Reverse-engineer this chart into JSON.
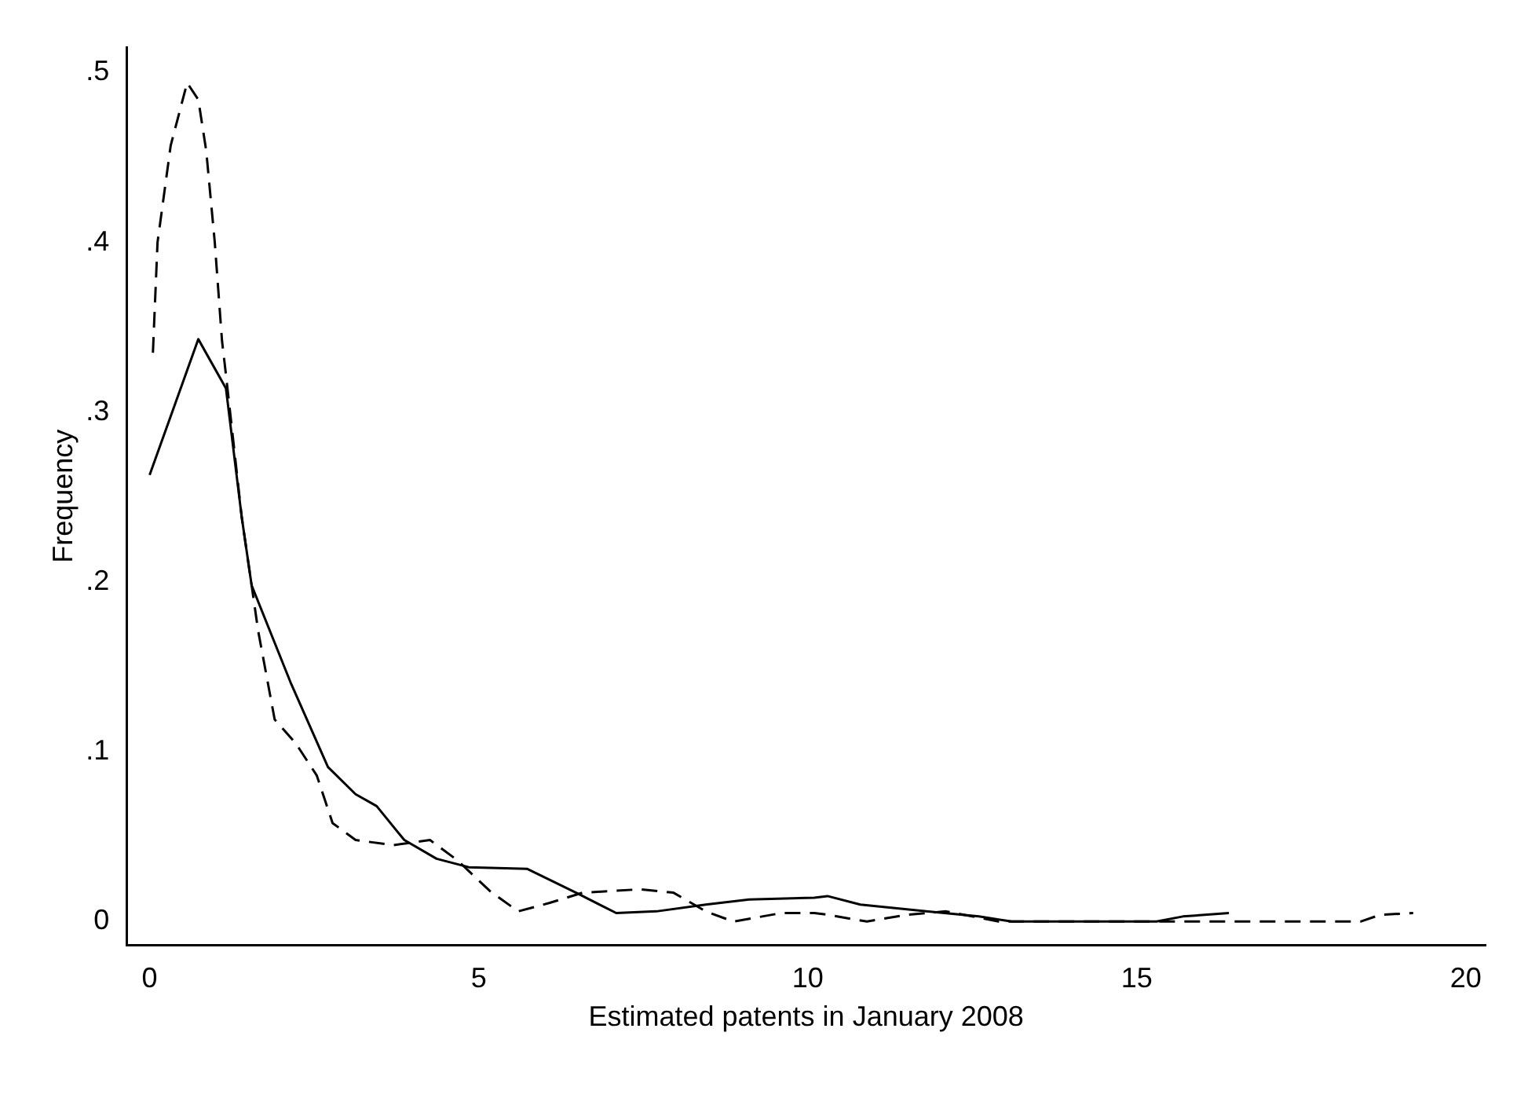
{
  "chart_data": {
    "type": "line",
    "xlabel": "Estimated patents in January 2008",
    "ylabel": "Frequency",
    "xlim": [
      -0.35,
      20.3
    ],
    "ylim": [
      -0.014,
      0.515
    ],
    "xticks": [
      0,
      5,
      10,
      15,
      20
    ],
    "yticks": [
      0,
      {
        "value": 0.1,
        "label": ".1"
      },
      {
        "value": 0.2,
        "label": ".2"
      },
      {
        "value": 0.3,
        "label": ".3"
      },
      {
        "value": 0.4,
        "label": ".4"
      },
      {
        "value": 0.5,
        "label": ".5"
      }
    ],
    "grid": false,
    "legend": false,
    "marker": "none",
    "series": [
      {
        "color": "#000000",
        "line_style": "solid",
        "x": [
          0,
          0.74,
          1.16,
          1.4,
          1.55,
          2.14,
          2.71,
          3.13,
          3.45,
          3.87,
          4.36,
          4.85,
          5.74,
          6.48,
          7.09,
          7.7,
          8.45,
          9.11,
          10.1,
          10.3,
          10.8,
          11.8,
          12.6,
          13.1,
          15.3,
          15.7,
          16.4
        ],
        "values": [
          0.263,
          0.343,
          0.314,
          0.238,
          0.198,
          0.141,
          0.091,
          0.075,
          0.068,
          0.048,
          0.037,
          0.032,
          0.031,
          0.017,
          0.005,
          0.006,
          0.01,
          0.013,
          0.014,
          0.015,
          0.01,
          0.006,
          0.003,
          0,
          0,
          0.003,
          0.005
        ]
      },
      {
        "color": "#000000",
        "line_style": "dashed",
        "x": [
          0.05,
          0.12,
          0.32,
          0.57,
          0.74,
          0.86,
          0.99,
          1.1,
          1.16,
          1.4,
          1.55,
          1.65,
          1.9,
          2.22,
          2.54,
          2.78,
          3.13,
          3.7,
          4.26,
          4.68,
          5.17,
          5.6,
          6.08,
          6.58,
          7.46,
          7.96,
          8.45,
          8.87,
          9.6,
          10.1,
          10.3,
          10.9,
          11.5,
          12.1,
          12.9,
          18.4,
          18.7,
          19.2
        ],
        "values": [
          0.335,
          0.4,
          0.457,
          0.494,
          0.484,
          0.454,
          0.4,
          0.342,
          0.322,
          0.238,
          0.198,
          0.171,
          0.119,
          0.105,
          0.086,
          0.058,
          0.048,
          0.045,
          0.048,
          0.036,
          0.018,
          0.006,
          0.011,
          0.017,
          0.019,
          0.017,
          0.006,
          0,
          0.005,
          0.005,
          0.004,
          0,
          0.004,
          0.006,
          0,
          0,
          0.004,
          0.005
        ]
      }
    ]
  }
}
